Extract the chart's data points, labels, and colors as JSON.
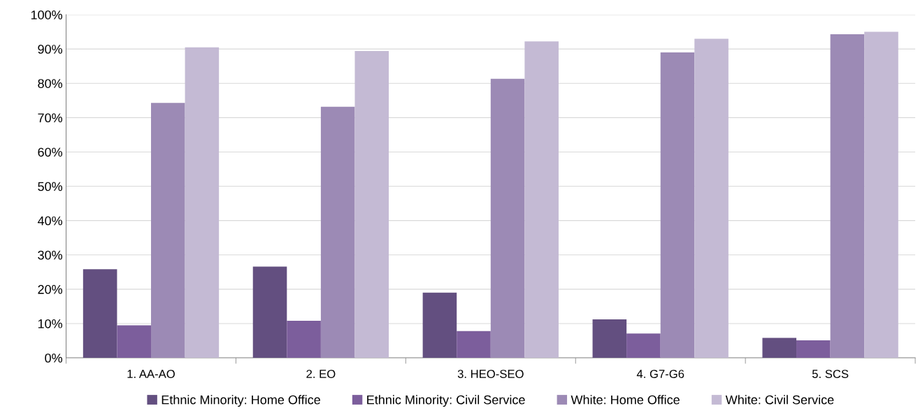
{
  "chart_data": {
    "type": "bar",
    "categories": [
      "1. AA-AO",
      "2. EO",
      "3. HEO-SEO",
      "4. G7-G6",
      "5. SCS"
    ],
    "series": [
      {
        "name": "Ethnic Minority: Home Office",
        "color": "#634f80",
        "values": [
          25.8,
          26.6,
          19.0,
          11.2,
          5.8
        ]
      },
      {
        "name": "Ethnic Minority: Civil Service",
        "color": "#7c5e9c",
        "values": [
          9.5,
          10.8,
          7.8,
          7.1,
          5.1
        ]
      },
      {
        "name": "White: Home Office",
        "color": "#9c8ab5",
        "values": [
          74.3,
          73.2,
          81.3,
          89.0,
          94.3
        ]
      },
      {
        "name": "White: Civil Service",
        "color": "#c4bad4",
        "values": [
          90.5,
          89.4,
          92.2,
          93.0,
          95.0
        ]
      }
    ],
    "ylim": [
      0,
      100
    ],
    "yticks": [
      {
        "value": 0,
        "label": "0%"
      },
      {
        "value": 10,
        "label": "10%"
      },
      {
        "value": 20,
        "label": "20%"
      },
      {
        "value": 30,
        "label": "30%"
      },
      {
        "value": 40,
        "label": "40%"
      },
      {
        "value": 50,
        "label": "50%"
      },
      {
        "value": 60,
        "label": "60%"
      },
      {
        "value": 70,
        "label": "70%"
      },
      {
        "value": 80,
        "label": "80%"
      },
      {
        "value": 90,
        "label": "90%"
      },
      {
        "value": 100,
        "label": "100%"
      }
    ],
    "grid": "y",
    "legend": "bottom"
  }
}
